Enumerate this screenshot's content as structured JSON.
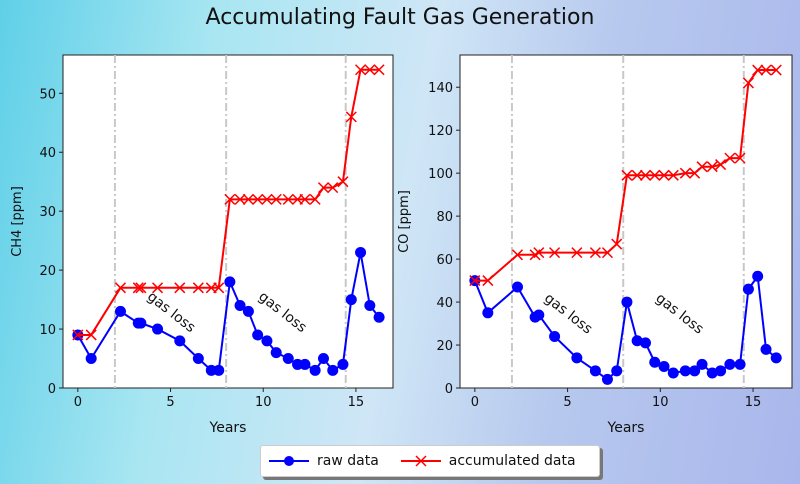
{
  "title": "Accumulating Fault Gas Generation",
  "legend": {
    "raw": "raw data",
    "acc": "accumulated data",
    "placement": "bottom-center"
  },
  "colors": {
    "raw": "#0000ff",
    "acc": "#ff0000",
    "vline": "#c8c8c8"
  },
  "chart_data": [
    {
      "type": "line",
      "xlabel": "Years",
      "ylabel": "CH4 [ppm]",
      "xlim": [
        -0.8,
        17
      ],
      "ylim": [
        0,
        56.5
      ],
      "xticks": [
        0,
        5,
        10,
        15
      ],
      "yticks": [
        0,
        10,
        20,
        30,
        40,
        50
      ],
      "vlines": [
        2.0,
        8.0,
        14.45
      ],
      "annotations": [
        {
          "text": "gas loss",
          "x": 4.9,
          "y": 12.3
        },
        {
          "text": "gas loss",
          "x": 10.9,
          "y": 12.3
        }
      ],
      "x": [
        0,
        0.72,
        2.3,
        3.26,
        3.4,
        4.3,
        5.5,
        6.5,
        7.2,
        7.6,
        8.2,
        8.75,
        9.2,
        9.7,
        10.2,
        10.7,
        11.35,
        11.85,
        12.25,
        12.8,
        13.25,
        13.75,
        14.3,
        14.75,
        15.25,
        15.75,
        16.25
      ],
      "series": [
        {
          "name": "raw data",
          "values": [
            9,
            5,
            13,
            11,
            11,
            10,
            8,
            5,
            3,
            3,
            18,
            14,
            13,
            9,
            8,
            6,
            5,
            4,
            4,
            3,
            5,
            3,
            4,
            15,
            23,
            14,
            12
          ]
        },
        {
          "name": "accumulated data",
          "values": [
            9,
            9,
            17,
            17,
            17,
            17,
            17,
            17,
            17,
            17,
            32,
            32,
            32,
            32,
            32,
            32,
            32,
            32,
            32,
            32,
            34,
            34,
            35,
            46,
            54,
            54,
            54
          ]
        }
      ]
    },
    {
      "type": "line",
      "xlabel": "Years",
      "ylabel": "CO [ppm]",
      "xlim": [
        -0.8,
        17.1
      ],
      "ylim": [
        0,
        155
      ],
      "xticks": [
        0,
        5,
        10,
        15
      ],
      "yticks": [
        0,
        20,
        40,
        60,
        80,
        100,
        120,
        140
      ],
      "vlines": [
        2.0,
        8.0,
        14.5
      ],
      "annotations": [
        {
          "text": "gas loss",
          "x": 4.9,
          "y": 33
        },
        {
          "text": "gas loss",
          "x": 10.9,
          "y": 33
        }
      ],
      "x": [
        0,
        0.7,
        2.3,
        3.25,
        3.45,
        4.3,
        5.5,
        6.5,
        7.15,
        7.65,
        8.2,
        8.75,
        9.2,
        9.7,
        10.2,
        10.7,
        11.35,
        11.85,
        12.25,
        12.8,
        13.25,
        13.75,
        14.3,
        14.75,
        15.25,
        15.7,
        16.25
      ],
      "series": [
        {
          "name": "raw data",
          "values": [
            50,
            35,
            47,
            33,
            34,
            24,
            14,
            8,
            4,
            8,
            40,
            22,
            21,
            12,
            10,
            7,
            8,
            8,
            11,
            7,
            8,
            11,
            11,
            46,
            52,
            18,
            14
          ]
        },
        {
          "name": "accumulated data",
          "values": [
            50,
            50,
            62,
            62,
            63,
            63,
            63,
            63,
            63,
            67,
            99,
            99,
            99,
            99,
            99,
            99,
            100,
            100,
            103,
            103,
            104,
            107,
            107,
            142,
            148,
            148,
            148
          ]
        }
      ]
    }
  ]
}
